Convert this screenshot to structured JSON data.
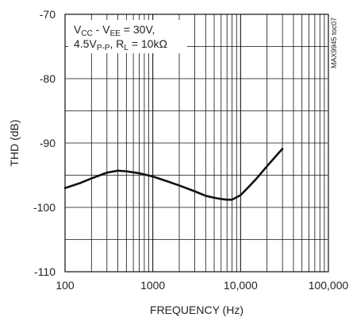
{
  "chart_data": {
    "type": "line",
    "title": "",
    "xlabel": "FREQUENCY (Hz)",
    "ylabel": "THD (dB)",
    "x_scale": "log",
    "xlim": [
      100,
      100000
    ],
    "ylim": [
      -110,
      -70
    ],
    "x_ticks": [
      100,
      1000,
      10000,
      100000
    ],
    "x_tick_labels": [
      "100",
      "1000",
      "10,000",
      "100,000"
    ],
    "y_ticks": [
      -70,
      -80,
      -90,
      -100,
      -110
    ],
    "y_tick_labels": [
      "-70",
      "-80",
      "-90",
      "-100",
      "-110"
    ],
    "grid": true,
    "annotation": {
      "line1_main": "V",
      "line1_sub1": "CC",
      "line1_mid": " - V",
      "line1_sub2": "EE",
      "line1_end": " = 30V,",
      "line2_main": "4.5V",
      "line2_sub1": "P-P",
      "line2_mid": ", R",
      "line2_sub2": "L",
      "line2_end": " = 10kΩ"
    },
    "figure_code": "MAX9945 toc07",
    "series": [
      {
        "color": "#111111",
        "x": [
          100,
          150,
          200,
          300,
          400,
          500,
          700,
          1000,
          1500,
          2000,
          3000,
          4000,
          5000,
          6000,
          7000,
          8000,
          10000,
          12000,
          15000,
          20000,
          25000,
          30000
        ],
        "y": [
          -97.0,
          -96.2,
          -95.5,
          -94.6,
          -94.3,
          -94.4,
          -94.7,
          -95.2,
          -96.0,
          -96.6,
          -97.5,
          -98.2,
          -98.5,
          -98.7,
          -98.8,
          -98.8,
          -98.1,
          -97.0,
          -95.6,
          -93.6,
          -92.1,
          -90.9
        ]
      }
    ]
  }
}
